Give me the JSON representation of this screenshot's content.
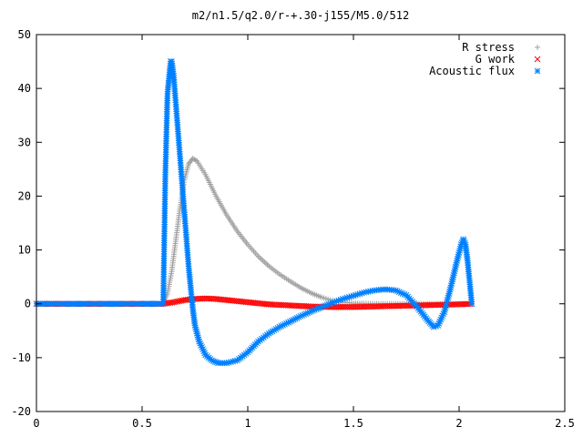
{
  "chart_data": {
    "type": "scatter",
    "title": "m2/n1.5/q2.0/r-+.30-j155/M5.0/512",
    "xlabel": "",
    "ylabel": "",
    "xlim": [
      0,
      2.5
    ],
    "ylim": [
      -20,
      50
    ],
    "x_ticks": [
      "0",
      "0.5",
      "1",
      "1.5",
      "2",
      "2.5"
    ],
    "x_tick_values": [
      0,
      0.5,
      1,
      1.5,
      2,
      2.5
    ],
    "y_ticks": [
      "-20",
      "-10",
      "0",
      "10",
      "20",
      "30",
      "40",
      "50"
    ],
    "y_tick_values": [
      -20,
      -10,
      0,
      10,
      20,
      30,
      40,
      50
    ],
    "grid": false,
    "legend_position": "top-right",
    "series": [
      {
        "name": "R stress",
        "marker": "plus",
        "color": "#a0a0a0",
        "points": [
          [
            0.0,
            0
          ],
          [
            0.1,
            0
          ],
          [
            0.2,
            0
          ],
          [
            0.3,
            0
          ],
          [
            0.4,
            0
          ],
          [
            0.5,
            0
          ],
          [
            0.6,
            0
          ],
          [
            0.62,
            2
          ],
          [
            0.64,
            6
          ],
          [
            0.66,
            12
          ],
          [
            0.68,
            18
          ],
          [
            0.7,
            23
          ],
          [
            0.72,
            26
          ],
          [
            0.74,
            27
          ],
          [
            0.76,
            26.5
          ],
          [
            0.8,
            24
          ],
          [
            0.85,
            20
          ],
          [
            0.9,
            16.5
          ],
          [
            0.95,
            13.5
          ],
          [
            1.0,
            11
          ],
          [
            1.05,
            8.8
          ],
          [
            1.1,
            7
          ],
          [
            1.15,
            5.5
          ],
          [
            1.2,
            4.2
          ],
          [
            1.25,
            3
          ],
          [
            1.3,
            2
          ],
          [
            1.35,
            1.2
          ],
          [
            1.4,
            0.6
          ],
          [
            1.45,
            0.3
          ],
          [
            1.5,
            0.1
          ],
          [
            1.6,
            0
          ],
          [
            1.7,
            0
          ],
          [
            1.8,
            0
          ],
          [
            1.9,
            0
          ],
          [
            2.0,
            0
          ],
          [
            2.06,
            0
          ]
        ]
      },
      {
        "name": "G work",
        "marker": "cross",
        "color": "#ff0000",
        "points": [
          [
            0.0,
            0
          ],
          [
            0.1,
            0
          ],
          [
            0.2,
            0
          ],
          [
            0.3,
            0
          ],
          [
            0.4,
            0
          ],
          [
            0.5,
            0
          ],
          [
            0.6,
            0
          ],
          [
            0.65,
            0.3
          ],
          [
            0.7,
            0.7
          ],
          [
            0.75,
            0.9
          ],
          [
            0.8,
            1
          ],
          [
            0.85,
            0.9
          ],
          [
            0.9,
            0.7
          ],
          [
            0.95,
            0.5
          ],
          [
            1.0,
            0.3
          ],
          [
            1.05,
            0.1
          ],
          [
            1.1,
            -0.1
          ],
          [
            1.2,
            -0.3
          ],
          [
            1.3,
            -0.5
          ],
          [
            1.4,
            -0.6
          ],
          [
            1.5,
            -0.6
          ],
          [
            1.6,
            -0.5
          ],
          [
            1.7,
            -0.4
          ],
          [
            1.8,
            -0.3
          ],
          [
            1.9,
            -0.2
          ],
          [
            2.0,
            -0.1
          ],
          [
            2.06,
            0
          ]
        ]
      },
      {
        "name": "Acoustic flux",
        "marker": "star",
        "color": "#0080ff",
        "points": [
          [
            0.0,
            0
          ],
          [
            0.1,
            0
          ],
          [
            0.2,
            0
          ],
          [
            0.3,
            0
          ],
          [
            0.4,
            0
          ],
          [
            0.5,
            0
          ],
          [
            0.6,
            0
          ],
          [
            0.61,
            24
          ],
          [
            0.62,
            39
          ],
          [
            0.63,
            43
          ],
          [
            0.635,
            45
          ],
          [
            0.64,
            45
          ],
          [
            0.65,
            42
          ],
          [
            0.66,
            37
          ],
          [
            0.67,
            32
          ],
          [
            0.68,
            27
          ],
          [
            0.69,
            22
          ],
          [
            0.7,
            17
          ],
          [
            0.71,
            12
          ],
          [
            0.72,
            7
          ],
          [
            0.73,
            3
          ],
          [
            0.74,
            -1
          ],
          [
            0.75,
            -4
          ],
          [
            0.77,
            -7
          ],
          [
            0.8,
            -9.5
          ],
          [
            0.83,
            -10.5
          ],
          [
            0.86,
            -11
          ],
          [
            0.9,
            -11
          ],
          [
            0.95,
            -10.5
          ],
          [
            1.0,
            -9
          ],
          [
            1.05,
            -7
          ],
          [
            1.1,
            -5.5
          ],
          [
            1.15,
            -4.3
          ],
          [
            1.2,
            -3.3
          ],
          [
            1.25,
            -2.3
          ],
          [
            1.3,
            -1.4
          ],
          [
            1.35,
            -0.6
          ],
          [
            1.4,
            0.2
          ],
          [
            1.45,
            0.9
          ],
          [
            1.5,
            1.5
          ],
          [
            1.55,
            2.1
          ],
          [
            1.6,
            2.5
          ],
          [
            1.65,
            2.7
          ],
          [
            1.7,
            2.5
          ],
          [
            1.75,
            1.6
          ],
          [
            1.8,
            -0.5
          ],
          [
            1.85,
            -3
          ],
          [
            1.88,
            -4.3
          ],
          [
            1.9,
            -4
          ],
          [
            1.93,
            -1.5
          ],
          [
            1.96,
            3
          ],
          [
            1.99,
            8
          ],
          [
            2.01,
            11
          ],
          [
            2.02,
            12
          ],
          [
            2.03,
            11
          ],
          [
            2.04,
            8
          ],
          [
            2.05,
            4
          ],
          [
            2.06,
            0
          ]
        ]
      }
    ]
  }
}
